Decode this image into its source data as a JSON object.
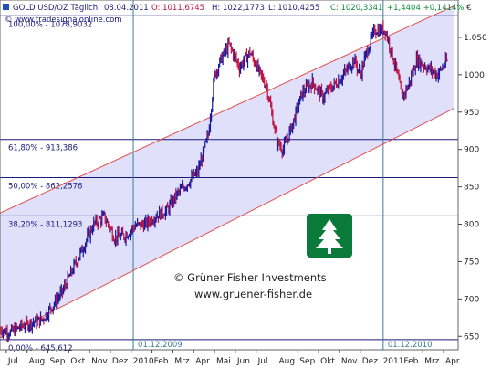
{
  "header": {
    "instrument": "GOLD USD/OZ Täglich",
    "date": "08.04.2011",
    "open": "O: 1011,6745",
    "high": "H: 1022,1773",
    "low": "L: 1010,4255",
    "close": "C: 1020,3341",
    "change": "+1,4404 +0,1414%",
    "currency": "€"
  },
  "source": "© www.tradesignalonline.com",
  "watermark": {
    "line1": "© Grüner Fisher Investments",
    "line2": "www.gruener-fisher.de"
  },
  "vline_labels": [
    "01.12.2009",
    "01.12.2010"
  ],
  "colors": {
    "background": "#ffffff",
    "channel_fill": "#e0e0fa",
    "channel_line": "#e05050",
    "level_line": "#1a1a7a",
    "up_candle": "#1a1aa0",
    "down_candle": "#c01040",
    "vline": "#3a7a9a",
    "logo_green": "#0a7a3a"
  },
  "chart_data": {
    "type": "line",
    "title": "GOLD USD/OZ Täglich",
    "y_unit": "€",
    "ylim": [
      632,
      1100
    ],
    "yticks": [
      650,
      700,
      750,
      800,
      850,
      900,
      950,
      1000,
      1050
    ],
    "ytick_labels": [
      "650",
      "700",
      "750",
      "800",
      "850",
      "900",
      "950",
      "1000",
      "1.050"
    ],
    "xtick_labels": [
      "Jul",
      "Aug",
      "Sep",
      "Okt",
      "Nov",
      "Dez",
      "2010",
      "Feb",
      "Mrz",
      "Apr",
      "Mai",
      "Jun",
      "Jul",
      "Aug",
      "Sep",
      "Okt",
      "Nov",
      "Dez",
      "2011",
      "Feb",
      "Mrz",
      "Apr"
    ],
    "fib_levels": [
      {
        "label": "100,00% - 1078,9032",
        "value": 1078.9
      },
      {
        "label": "61,80% - 913,386",
        "value": 913.4
      },
      {
        "label": "50,00% - 862,2576",
        "value": 862.3
      },
      {
        "label": "38,20% - 811,1293",
        "value": 811.1
      },
      {
        "label": "0,00% - 645,612",
        "value": 645.6
      }
    ],
    "channel": {
      "upper": {
        "x_start": 0,
        "y_start": 815,
        "x_end": 21.8,
        "y_end": 1092
      },
      "lower": {
        "x_start": 0,
        "y_start": 648,
        "x_end": 21.8,
        "y_end": 955
      }
    },
    "vlines_x": [
      6.4,
      18.4
    ],
    "series": [
      {
        "x": [
          0,
          0.5,
          1,
          1.5,
          2,
          2.5,
          3,
          3.5,
          4,
          4.5,
          5,
          5.5,
          6,
          6.5,
          7,
          7.5,
          8,
          8.5,
          9,
          9.5,
          10,
          10.3,
          10.6,
          11,
          11.5,
          12,
          12.5,
          12.8,
          13,
          13.3,
          13.6,
          14,
          14.5,
          15,
          15.5,
          16,
          16.5,
          17,
          17.3,
          17.6,
          18,
          18.5,
          19,
          19.3,
          19.6,
          20,
          20.5,
          21,
          21.5
        ],
        "values": [
          660,
          655,
          663,
          668,
          672,
          690,
          710,
          740,
          770,
          800,
          810,
          782,
          785,
          798,
          800,
          812,
          818,
          840,
          855,
          870,
          920,
          1000,
          1020,
          1040,
          1010,
          1030,
          1000,
          985,
          955,
          910,
          900,
          930,
          975,
          990,
          970,
          985,
          1000,
          1020,
          1000,
          1030,
          1060,
          1060,
          1010,
          970,
          985,
          1020,
          1010,
          1000,
          1020
        ]
      }
    ]
  }
}
